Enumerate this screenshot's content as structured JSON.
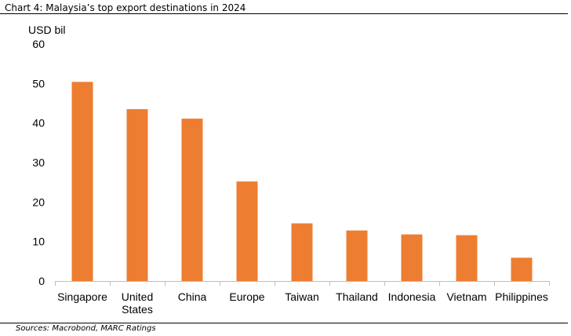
{
  "title": "Chart 4: Malaysia’s top export destinations in 2024",
  "source": "Sources: Macrobond, MARC Ratings",
  "colors": {
    "bar": "#ED7D31",
    "axis": "#BFBFBF"
  },
  "chart_data": {
    "type": "bar",
    "ylabel": "USD bil",
    "ylim": [
      0,
      60
    ],
    "yticks": [
      0,
      10,
      20,
      30,
      40,
      50,
      60
    ],
    "grid": false,
    "legend": "none",
    "categories": [
      [
        "Singapore"
      ],
      [
        "United",
        "States"
      ],
      [
        "China"
      ],
      [
        "Europe"
      ],
      [
        "Taiwan"
      ],
      [
        "Thailand"
      ],
      [
        "Indonesia"
      ],
      [
        "Vietnam"
      ],
      [
        "Philippines"
      ]
    ],
    "values": [
      50.4,
      43.5,
      41.1,
      25.2,
      14.6,
      12.8,
      11.8,
      11.6,
      5.9
    ]
  }
}
